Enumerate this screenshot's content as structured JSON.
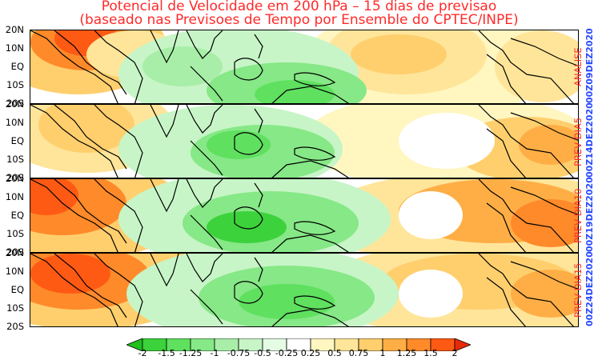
{
  "title_line1": "Potencial de Velocidade em 200 hPa – 15 dias de previsao",
  "title_line2": "(baseado nas Previsoes de Tempo por Ensemble do CPTEC/INPE)",
  "lat_labels": [
    "20N",
    "10N",
    "EQ",
    "10S",
    "20S"
  ],
  "panels": [
    {
      "label": "ANALISE",
      "date": "00Z09DEZ2020"
    },
    {
      "label": "PREV DIA5",
      "date": "00Z14DEZ2020"
    },
    {
      "label": "PREV DIA10",
      "date": "00Z19DEZ2020"
    },
    {
      "label": "PREV DIA15",
      "date": "00Z24DEZ2020"
    }
  ],
  "chart_data": {
    "type": "heatmap",
    "variable": "Potencial de Velocidade 200 hPa",
    "levels": [
      -2,
      -1.5,
      -1.25,
      -1,
      -0.75,
      -0.5,
      -0.25,
      0.25,
      0.5,
      0.75,
      1,
      1.25,
      1.5,
      2
    ],
    "level_labels": [
      "-2",
      "-1.5",
      "-1.25",
      "-1",
      "-0.75",
      "-0.5",
      "-0.25",
      "0.25",
      "0.5",
      "0.75",
      "1",
      "1.25",
      "1.5",
      "2"
    ],
    "colors": [
      "#1fbf1f",
      "#3cd23c",
      "#5fe05f",
      "#86e886",
      "#a8eea8",
      "#c7f5c7",
      "#e4fbe4",
      "#ffffff",
      "#fff6c0",
      "#ffe59a",
      "#ffcf6e",
      "#ffae46",
      "#ff8a2a",
      "#ff5a14",
      "#e82a08"
    ],
    "y_ticks": [
      "20N",
      "10N",
      "EQ",
      "10S",
      "20S"
    ]
  }
}
